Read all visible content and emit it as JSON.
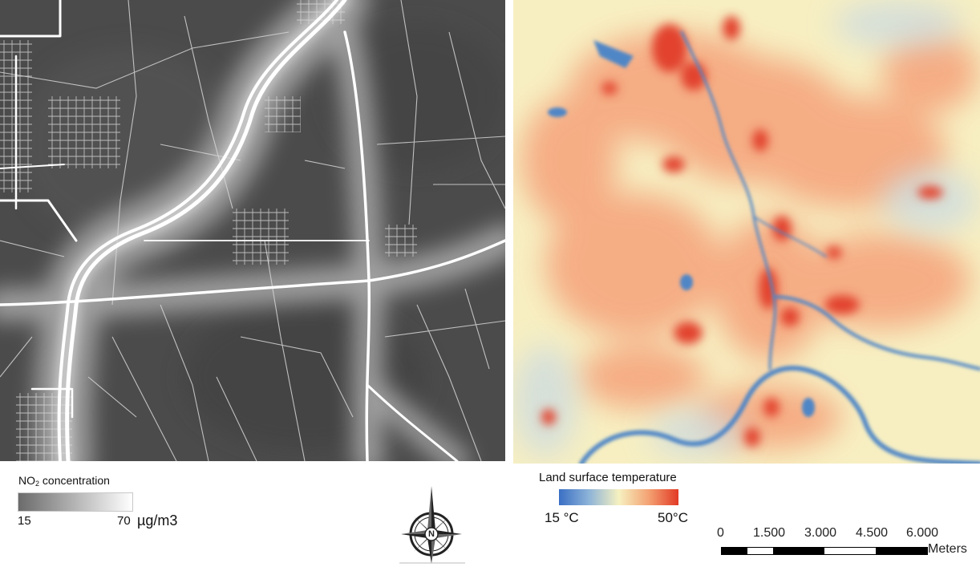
{
  "no2_legend": {
    "title": "NO",
    "title_sub": "2",
    "title_rest": " concentration",
    "min_label": "15",
    "max_label": "70",
    "unit": "µg/m3",
    "gradient": [
      "#6b6b6b",
      "#ffffff"
    ]
  },
  "lst_legend": {
    "title": "Land surface temperature",
    "min_label": "15 °C",
    "max_label": "50°C",
    "gradient": [
      "#3a6fc4",
      "#8db3d8",
      "#f6f1c0",
      "#f4a273",
      "#e23a24"
    ]
  },
  "scale_bar": {
    "ticks": [
      "0",
      "1.500",
      "3.000",
      "4.500",
      "6.000"
    ],
    "unit": "Meters"
  },
  "compass": {
    "letter": "N",
    "icon": "north-arrow-compass-rose"
  },
  "colors": {
    "no2_background": "#4a4a4a",
    "no2_roads": "#ffffff",
    "lst_background": "#f7efc2",
    "lst_water": "#4f86c6",
    "lst_hot": "#e2432e",
    "lst_warm": "#f5a27a"
  }
}
